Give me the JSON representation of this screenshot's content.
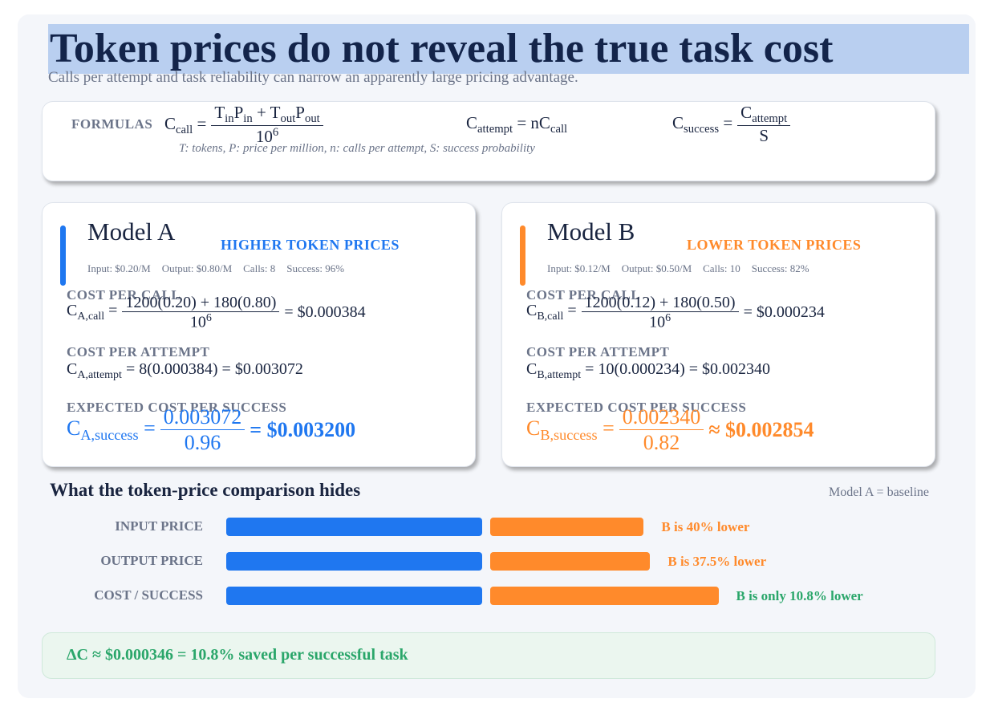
{
  "header": {
    "title": "Token prices do not reveal the true task cost",
    "subtitle": "Calls per attempt and task reliability can narrow an apparently large pricing advantage."
  },
  "formulas": {
    "label": "FORMULAS",
    "items": [
      {
        "lhs": [
          "C",
          {
            "sub": "call"
          },
          " ="
        ],
        "num": [
          "T",
          {
            "sub": "in"
          },
          "P",
          {
            "sub": "in"
          },
          " + T",
          {
            "sub": "out"
          },
          "P",
          {
            "sub": "out"
          }
        ],
        "den": [
          "10",
          {
            "sup": "6"
          }
        ]
      },
      {
        "lhs": [
          "C",
          {
            "sub": "attempt"
          },
          " = nC",
          {
            "sub": "call"
          }
        ]
      },
      {
        "lhs": [
          "C",
          {
            "sub": "success"
          },
          " ="
        ],
        "num": [
          "C",
          {
            "sub": "attempt"
          }
        ],
        "den": [
          "S"
        ]
      }
    ],
    "legend": "T: tokens, P: price per million, n: calls per attempt, S: success probability"
  },
  "models": [
    {
      "name": "Model A",
      "tag": "HIGHER TOKEN PRICES",
      "color": "#1f77f0",
      "stats": [
        "Input: $0.20/M",
        "Output: $0.80/M",
        "Calls: 8",
        "Success: 96%"
      ],
      "sections": [
        {
          "label": "COST PER CALL",
          "formula": {
            "lhs": [
              "C",
              {
                "sub": "A,call"
              },
              " ="
            ],
            "num": [
              "1200(0.20) + 180(0.80)"
            ],
            "den": [
              "10",
              {
                "sup": "6"
              }
            ],
            "rhs": [
              "= $0.000384"
            ]
          }
        },
        {
          "label": "COST PER ATTEMPT",
          "formula": {
            "lhs": [
              "C",
              {
                "sub": "A,attempt"
              },
              " = 8(0.000384) = $0.003072"
            ]
          }
        },
        {
          "label": "EXPECTED COST PER SUCCESS",
          "formula": {
            "lhs": [
              "C",
              {
                "sub": "A,success"
              },
              " ="
            ],
            "num": [
              "0.003072"
            ],
            "den": [
              "0.96"
            ],
            "rhs": [
              "= $0.003200"
            ]
          }
        }
      ]
    },
    {
      "name": "Model B",
      "tag": "LOWER TOKEN PRICES",
      "color": "#ff8a2b",
      "stats": [
        "Input: $0.12/M",
        "Output: $0.50/M",
        "Calls: 10",
        "Success: 82%"
      ],
      "sections": [
        {
          "label": "COST PER CALL",
          "formula": {
            "lhs": [
              "C",
              {
                "sub": "B,call"
              },
              " ="
            ],
            "num": [
              "1200(0.12) + 180(0.50)"
            ],
            "den": [
              "10",
              {
                "sup": "6"
              }
            ],
            "rhs": [
              "= $0.000234"
            ]
          }
        },
        {
          "label": "COST PER ATTEMPT",
          "formula": {
            "lhs": [
              "C",
              {
                "sub": "B,attempt"
              },
              " = 10(0.000234) = $0.002340"
            ]
          }
        },
        {
          "label": "EXPECTED COST PER SUCCESS",
          "formula": {
            "lhs": [
              "C",
              {
                "sub": "B,success"
              },
              " ="
            ],
            "num": [
              "0.002340"
            ],
            "den": [
              "0.82"
            ],
            "rhs": [
              "≈ $0.002854"
            ]
          }
        }
      ]
    }
  ],
  "comparison": {
    "title": "What the token-price comparison hides",
    "note": "Model A = baseline",
    "rows": [
      {
        "label": "INPUT PRICE",
        "a": 0.2,
        "b": 0.12,
        "note": "B is 40% lower",
        "note_color": "#ff8a2b"
      },
      {
        "label": "OUTPUT PRICE",
        "a": 0.8,
        "b": 0.5,
        "note": "B is 37.5% lower",
        "note_color": "#ff8a2b"
      },
      {
        "label": "COST / SUCCESS",
        "a": 0.0032,
        "b": 0.002854,
        "note": "B is only 10.8% lower",
        "note_color": "#2aa66a"
      }
    ]
  },
  "footer": "ΔC ≈ $0.000346 = 10.8% saved per successful task"
}
